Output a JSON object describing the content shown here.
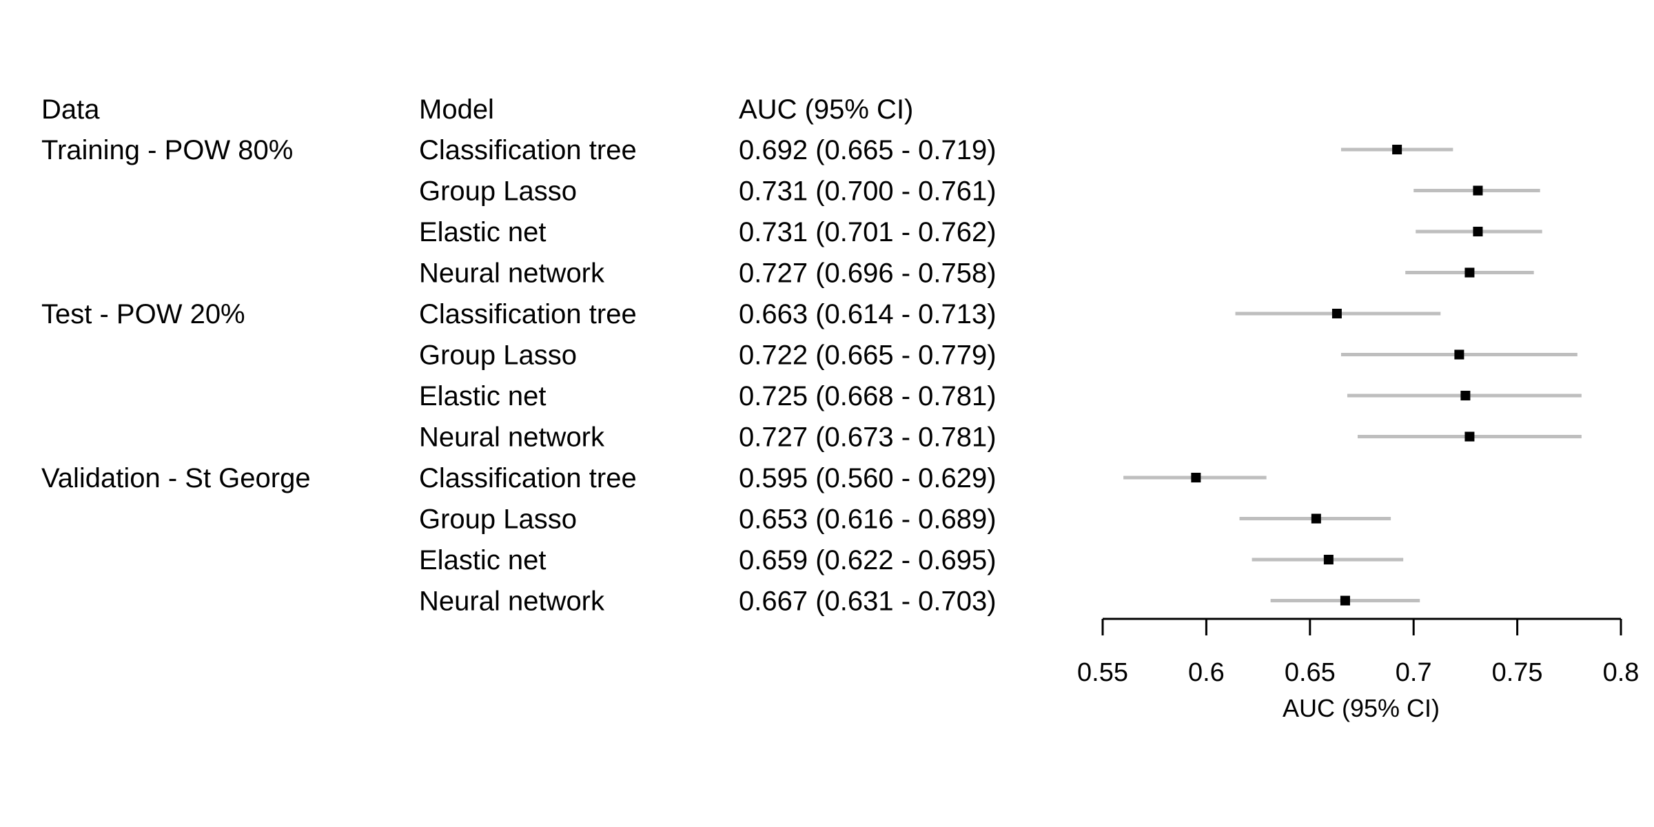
{
  "chart_data": {
    "type": "forest",
    "columns": {
      "data": "Data",
      "model": "Model",
      "auc": "AUC (95% CI)"
    },
    "rows": [
      {
        "data": "Training - POW 80%",
        "model": "Classification tree",
        "auc_text": "0.692 (0.665 - 0.719)",
        "auc": 0.692,
        "lo": 0.665,
        "hi": 0.719
      },
      {
        "data": "",
        "model": "Group Lasso",
        "auc_text": "0.731 (0.700 - 0.761)",
        "auc": 0.731,
        "lo": 0.7,
        "hi": 0.761
      },
      {
        "data": "",
        "model": "Elastic net",
        "auc_text": "0.731 (0.701 - 0.762)",
        "auc": 0.731,
        "lo": 0.701,
        "hi": 0.762
      },
      {
        "data": "",
        "model": "Neural network",
        "auc_text": "0.727 (0.696 - 0.758)",
        "auc": 0.727,
        "lo": 0.696,
        "hi": 0.758
      },
      {
        "data": "Test - POW 20%",
        "model": "Classification tree",
        "auc_text": "0.663 (0.614 - 0.713)",
        "auc": 0.663,
        "lo": 0.614,
        "hi": 0.713
      },
      {
        "data": "",
        "model": "Group Lasso",
        "auc_text": "0.722 (0.665 - 0.779)",
        "auc": 0.722,
        "lo": 0.665,
        "hi": 0.779
      },
      {
        "data": "",
        "model": "Elastic net",
        "auc_text": "0.725 (0.668 - 0.781)",
        "auc": 0.725,
        "lo": 0.668,
        "hi": 0.781
      },
      {
        "data": "",
        "model": "Neural network",
        "auc_text": "0.727 (0.673 - 0.781)",
        "auc": 0.727,
        "lo": 0.673,
        "hi": 0.781
      },
      {
        "data": "Validation - St George",
        "model": "Classification tree",
        "auc_text": "0.595 (0.560 - 0.629)",
        "auc": 0.595,
        "lo": 0.56,
        "hi": 0.629
      },
      {
        "data": "",
        "model": "Group Lasso",
        "auc_text": "0.653 (0.616 - 0.689)",
        "auc": 0.653,
        "lo": 0.616,
        "hi": 0.689
      },
      {
        "data": "",
        "model": "Elastic net",
        "auc_text": "0.659 (0.622 - 0.695)",
        "auc": 0.659,
        "lo": 0.622,
        "hi": 0.695
      },
      {
        "data": "",
        "model": "Neural network",
        "auc_text": "0.667 (0.631 - 0.703)",
        "auc": 0.667,
        "lo": 0.631,
        "hi": 0.703
      }
    ],
    "xlabel": "AUC (95% CI)",
    "xlim": [
      0.55,
      0.8
    ],
    "xticks": [
      0.55,
      0.6,
      0.65,
      0.7,
      0.75,
      0.8
    ],
    "xtick_labels": [
      "0.55",
      "0.6",
      "0.65",
      "0.7",
      "0.75",
      "0.8"
    ],
    "grid": false,
    "colors": {
      "ci_line": "#bebebe",
      "point": "#000000",
      "axis": "#000000",
      "text": "#000000"
    },
    "marker": "square"
  }
}
